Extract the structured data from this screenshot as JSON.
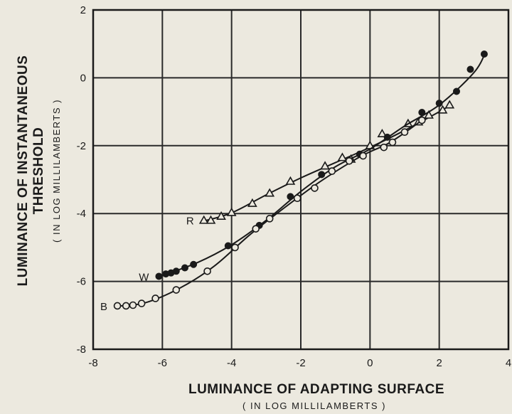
{
  "chart_data": {
    "type": "line",
    "title": "",
    "xlabel": "LUMINANCE OF ADAPTING SURFACE",
    "xlabel_sub": "( IN LOG MILLILAMBERTS )",
    "ylabel_line1": "LUMINANCE OF INSTANTANEOUS",
    "ylabel_line2": "THRESHOLD",
    "ylabel_sub": "( IN LOG MILLILAMBERTS )",
    "xlim": [
      -8,
      4
    ],
    "ylim": [
      -8,
      2
    ],
    "xticks": [
      -8,
      -6,
      -4,
      -2,
      0,
      2,
      4
    ],
    "xtick_labels": [
      "-8",
      "-6",
      "-4",
      "-2",
      "0",
      "2",
      "4"
    ],
    "yticks": [
      -8,
      -6,
      -4,
      -2,
      0,
      2
    ],
    "ytick_labels": [
      "-8",
      "-6",
      "-4",
      "-2",
      "0",
      "2"
    ],
    "grid": true,
    "series": [
      {
        "name": "R",
        "marker": "open-triangle",
        "points": [
          [
            -4.8,
            -4.2
          ],
          [
            -4.6,
            -4.2
          ],
          [
            -4.3,
            -4.08
          ],
          [
            -4.0,
            -3.97
          ],
          [
            -3.4,
            -3.7
          ],
          [
            -2.9,
            -3.4
          ],
          [
            -2.3,
            -3.05
          ],
          [
            -1.3,
            -2.6
          ],
          [
            -0.8,
            -2.35
          ],
          [
            -0.55,
            -2.4
          ],
          [
            0.0,
            -2.0
          ],
          [
            0.35,
            -1.65
          ],
          [
            1.1,
            -1.35
          ],
          [
            1.4,
            -1.3
          ],
          [
            1.7,
            -1.1
          ],
          [
            2.1,
            -0.95
          ],
          [
            2.3,
            -0.8
          ]
        ],
        "curve": [
          [
            -4.8,
            -4.22
          ],
          [
            -4.0,
            -3.98
          ],
          [
            -3.0,
            -3.45
          ],
          [
            -2.0,
            -2.95
          ],
          [
            -1.0,
            -2.5
          ],
          [
            0.0,
            -2.05
          ],
          [
            1.0,
            -1.55
          ],
          [
            2.0,
            -1.0
          ],
          [
            2.3,
            -0.82
          ]
        ]
      },
      {
        "name": "W",
        "marker": "filled-circle",
        "points": [
          [
            -6.1,
            -5.85
          ],
          [
            -5.9,
            -5.78
          ],
          [
            -5.75,
            -5.75
          ],
          [
            -5.6,
            -5.7
          ],
          [
            -5.35,
            -5.6
          ],
          [
            -5.1,
            -5.5
          ],
          [
            -4.1,
            -4.95
          ],
          [
            -3.2,
            -4.35
          ],
          [
            -2.3,
            -3.5
          ],
          [
            -1.4,
            -2.85
          ],
          [
            -0.3,
            -2.25
          ],
          [
            0.5,
            -1.75
          ],
          [
            1.5,
            -1.02
          ],
          [
            2.0,
            -0.75
          ],
          [
            2.5,
            -0.4
          ],
          [
            2.9,
            0.25
          ],
          [
            3.3,
            0.7
          ]
        ],
        "curve": [
          [
            -6.1,
            -5.86
          ],
          [
            -5.0,
            -5.45
          ],
          [
            -4.0,
            -4.92
          ],
          [
            -3.0,
            -4.2
          ],
          [
            -2.0,
            -3.35
          ],
          [
            -1.0,
            -2.62
          ],
          [
            0.0,
            -2.1
          ],
          [
            1.0,
            -1.42
          ],
          [
            2.0,
            -0.8
          ],
          [
            3.0,
            0.15
          ],
          [
            3.35,
            0.78
          ]
        ]
      },
      {
        "name": "B",
        "marker": "open-circle",
        "points": [
          [
            -7.3,
            -6.72
          ],
          [
            -7.05,
            -6.72
          ],
          [
            -6.85,
            -6.7
          ],
          [
            -6.6,
            -6.65
          ],
          [
            -6.2,
            -6.5
          ],
          [
            -5.6,
            -6.25
          ],
          [
            -4.7,
            -5.7
          ],
          [
            -3.9,
            -5.0
          ],
          [
            -3.3,
            -4.45
          ],
          [
            -2.9,
            -4.15
          ],
          [
            -2.1,
            -3.55
          ],
          [
            -1.6,
            -3.25
          ],
          [
            -1.1,
            -2.75
          ],
          [
            -0.6,
            -2.45
          ],
          [
            -0.2,
            -2.3
          ],
          [
            0.4,
            -2.05
          ],
          [
            0.65,
            -1.9
          ],
          [
            1.0,
            -1.6
          ],
          [
            1.5,
            -1.25
          ]
        ],
        "curve": [
          [
            -7.3,
            -6.73
          ],
          [
            -6.5,
            -6.63
          ],
          [
            -5.5,
            -6.2
          ],
          [
            -4.5,
            -5.55
          ],
          [
            -3.5,
            -4.65
          ],
          [
            -2.5,
            -3.85
          ],
          [
            -1.5,
            -3.1
          ],
          [
            -0.5,
            -2.45
          ],
          [
            0.0,
            -2.18
          ],
          [
            0.5,
            -1.95
          ],
          [
            1.0,
            -1.62
          ],
          [
            1.5,
            -1.25
          ]
        ]
      }
    ]
  }
}
